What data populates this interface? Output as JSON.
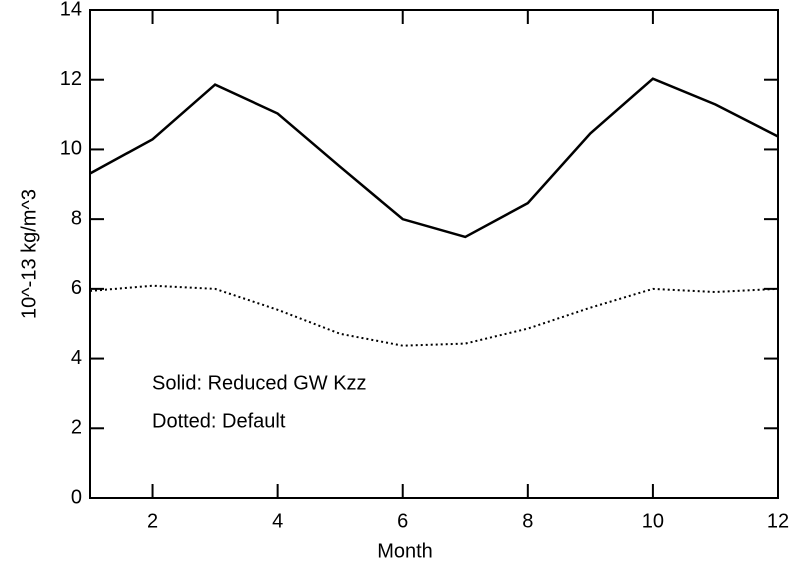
{
  "chart_data": {
    "type": "line",
    "x": [
      1,
      2,
      3,
      4,
      5,
      6,
      7,
      8,
      9,
      10,
      11,
      12
    ],
    "series": [
      {
        "color": "#000000",
        "style": "solid",
        "values": [
          9.31,
          10.29,
          11.86,
          11.03,
          9.5,
          8.0,
          7.49,
          8.46,
          10.46,
          12.03,
          11.29,
          10.37
        ]
      },
      {
        "color": "#000000",
        "style": "dotted",
        "values": [
          5.94,
          6.09,
          6.0,
          5.4,
          4.71,
          4.37,
          4.43,
          4.86,
          5.46,
          6.0,
          5.91,
          6.0
        ]
      }
    ],
    "xlabel": "Month",
    "ylabel": "10^-13 kg/m^3",
    "xlim": [
      1,
      12
    ],
    "xticks": [
      2,
      4,
      6,
      8,
      10,
      12
    ],
    "ylim": [
      0,
      14
    ],
    "yticks": [
      0,
      2,
      4,
      6,
      8,
      10,
      12,
      14
    ],
    "annotations": [
      "Solid: Reduced GW Kzz",
      "Dotted: Default"
    ]
  }
}
